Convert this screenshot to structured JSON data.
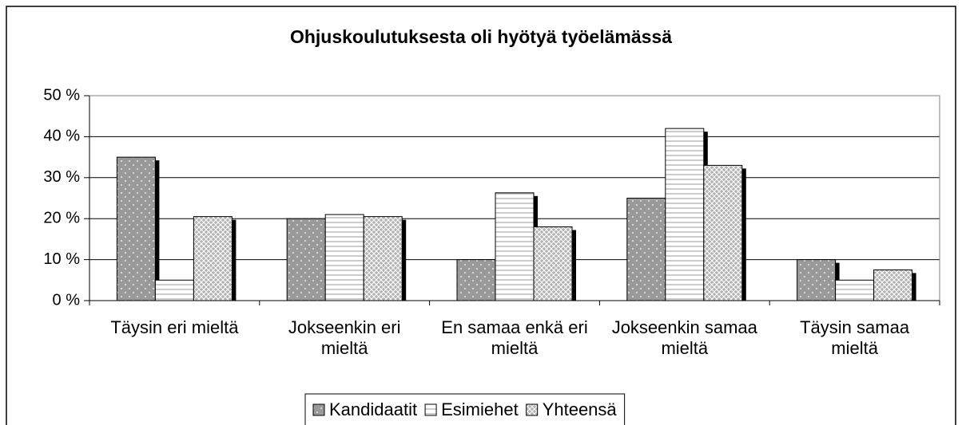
{
  "chart_data": {
    "type": "bar",
    "title": "Ohjuskoulutuksesta oli hyötyä työelämässä",
    "categories": [
      "Täysin eri mieltä",
      "Jokseenkin eri mieltä",
      "En samaa enkä eri mieltä",
      "Jokseenkin samaa mieltä",
      "Täysin samaa mieltä"
    ],
    "series": [
      {
        "name": "Kandidaatit",
        "color": "#999999",
        "values": [
          35,
          20,
          10,
          25,
          10
        ]
      },
      {
        "name": "Esimiehet",
        "color": "#ffffff",
        "values": [
          5,
          21,
          26.3,
          42,
          5
        ]
      },
      {
        "name": "Yhteensä",
        "color": "#b3b3b3",
        "values": [
          20.5,
          20.5,
          18,
          33,
          7.5
        ]
      }
    ],
    "ylim": [
      0,
      50
    ],
    "yticks": [
      {
        "value": 0,
        "label": "0 %"
      },
      {
        "value": 10,
        "label": "10 %"
      },
      {
        "value": 20,
        "label": "20 %"
      },
      {
        "value": 30,
        "label": "30 %"
      },
      {
        "value": 40,
        "label": "40 %"
      },
      {
        "value": 50,
        "label": "50 %"
      }
    ],
    "grid": true,
    "legend": "bottom"
  }
}
